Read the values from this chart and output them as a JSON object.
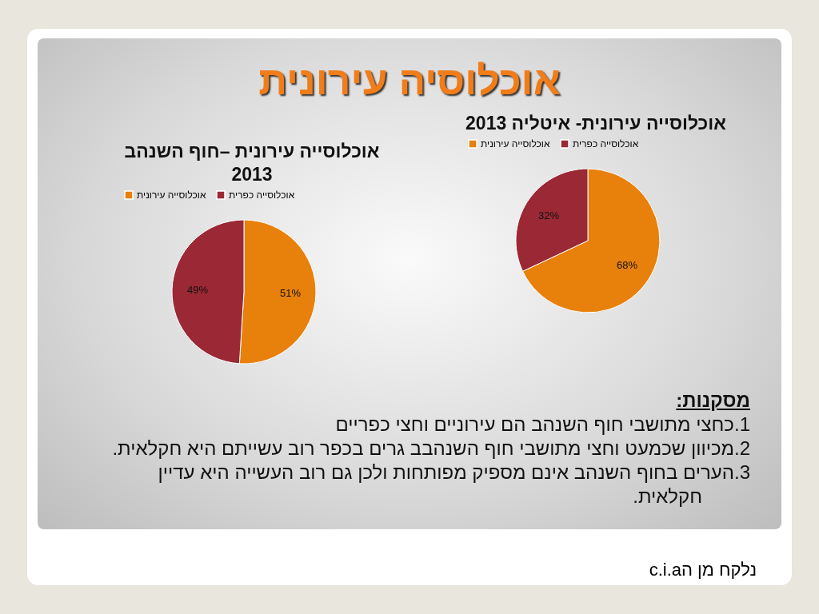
{
  "chart_data": [
    {
      "type": "other",
      "title": "אוכלוסיה עירונית",
      "subtitle": "מסקנות:",
      "annotations": [
        "1.כחצי מתושבי חוף השנהב הם עירוניים וחצי כפריים",
        "2.מכיוון שכמעט וחצי מתושבי חוף השנהבב גרים בכפר רוב עשייתם היא חקלאית.",
        "3.הערים בחוף השנהב אינם מספיק מפותחות ולכן גם רוב העשייה היא עדיין חקלאית.",
        "נלקח מן הc.i.a"
      ]
    },
    {
      "type": "pie",
      "title": "אוכלוסייה עירונית- איטליה 2013",
      "categories": [
        "אוכלוסייה עירונית",
        "אוכלוסייה כפרית"
      ],
      "values": [
        68,
        32
      ],
      "colors": [
        "#e8800c",
        "#9b2835"
      ],
      "value_labels": [
        "68%",
        "32%"
      ],
      "legend": "top"
    },
    {
      "type": "pie",
      "title": "אוכלוסייה עירונית –חוף השנהב 2013",
      "categories": [
        "אוכלוסייה עירונית",
        "אוכלוסייה כפרית"
      ],
      "values": [
        51,
        49
      ],
      "colors": [
        "#e8800c",
        "#9b2835"
      ],
      "value_labels": [
        "51%",
        "49%"
      ],
      "legend": "top"
    }
  ]
}
